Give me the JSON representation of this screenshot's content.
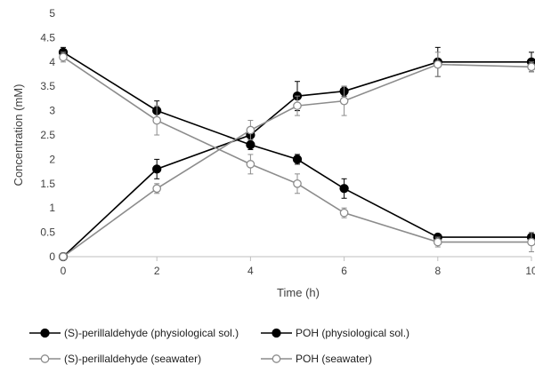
{
  "chart_data": {
    "type": "line",
    "title": "",
    "xlabel": "Time (h)",
    "ylabel": "Concentration (mM)",
    "x": [
      0,
      2,
      4,
      5,
      6,
      8,
      10
    ],
    "xlim": [
      0,
      10
    ],
    "ylim": [
      0,
      5
    ],
    "x_ticks": [
      "0",
      "2",
      "4",
      "6",
      "8",
      "10"
    ],
    "y_ticks": [
      "0",
      "0.5",
      "1",
      "1.5",
      "2",
      "2.5",
      "3",
      "3.5",
      "4",
      "4.5",
      "5"
    ],
    "grid": false,
    "legend_position": "bottom",
    "series": [
      {
        "name": "(S)-perillaldehyde (physiological sol.)",
        "color": "#000000",
        "marker": "filled-circle",
        "values": [
          4.2,
          3.0,
          2.3,
          2.0,
          1.4,
          0.4,
          0.4
        ],
        "errors": [
          0.1,
          0.2,
          0.1,
          0.1,
          0.2,
          0.05,
          0.05
        ]
      },
      {
        "name": "POH (physiological sol.)",
        "color": "#000000",
        "marker": "filled-circle",
        "values": [
          0.0,
          1.8,
          2.5,
          3.3,
          3.4,
          4.0,
          4.0
        ],
        "errors": [
          0.0,
          0.2,
          0.1,
          0.3,
          0.1,
          0.3,
          0.2
        ]
      },
      {
        "name": "(S)-perillaldehyde (seawater)",
        "color": "#8c8c8c",
        "marker": "open-circle",
        "values": [
          4.1,
          2.8,
          1.9,
          1.5,
          0.9,
          0.3,
          0.3
        ],
        "errors": [
          0.1,
          0.3,
          0.2,
          0.2,
          0.1,
          0.1,
          0.2
        ]
      },
      {
        "name": "POH (seawater)",
        "color": "#8c8c8c",
        "marker": "open-circle",
        "values": [
          0.0,
          1.4,
          2.6,
          3.1,
          3.2,
          3.95,
          3.9
        ],
        "errors": [
          0.0,
          0.1,
          0.2,
          0.2,
          0.3,
          0.25,
          0.1
        ]
      }
    ]
  }
}
